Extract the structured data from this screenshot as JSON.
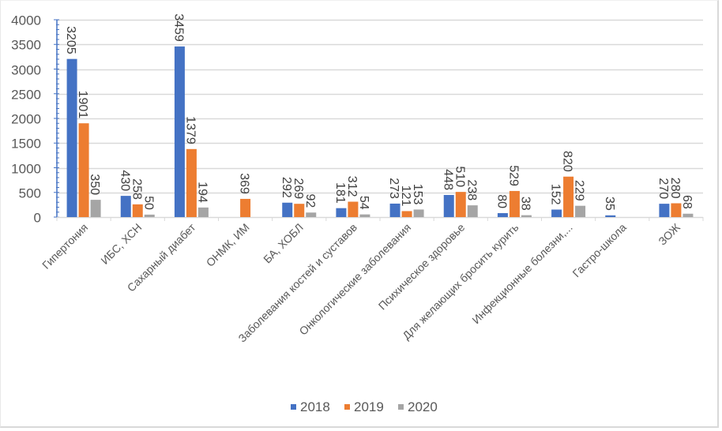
{
  "chart_data": {
    "type": "bar",
    "title": "",
    "xlabel": "",
    "ylabel": "",
    "ylim": [
      0,
      4000
    ],
    "yticks": [
      0,
      500,
      1000,
      1500,
      2000,
      2500,
      3000,
      3500,
      4000
    ],
    "grid": true,
    "legend_position": "bottom",
    "categories": [
      "Гипертония",
      "ИБС, ХСН",
      "Сахарный диабет",
      "ОНМК, ИМ",
      "БА, ХОБЛ",
      "Заболевания костей и суставов",
      "Онкологические заболевания",
      "Психическое здоровье",
      "Для желающих бросить курить",
      "Инфекционные болезни,...",
      "Гастро-школа",
      "ЗОЖ"
    ],
    "series": [
      {
        "name": "2018",
        "color": "#4472C4",
        "values": [
          3205,
          430,
          3459,
          null,
          292,
          181,
          273,
          448,
          80,
          152,
          35,
          270
        ]
      },
      {
        "name": "2019",
        "color": "#ED7D31",
        "values": [
          1901,
          258,
          1379,
          369,
          269,
          312,
          121,
          510,
          529,
          820,
          null,
          280
        ]
      },
      {
        "name": "2020",
        "color": "#A5A5A5",
        "values": [
          350,
          50,
          194,
          null,
          92,
          54,
          153,
          238,
          38,
          229,
          null,
          68
        ]
      }
    ]
  }
}
